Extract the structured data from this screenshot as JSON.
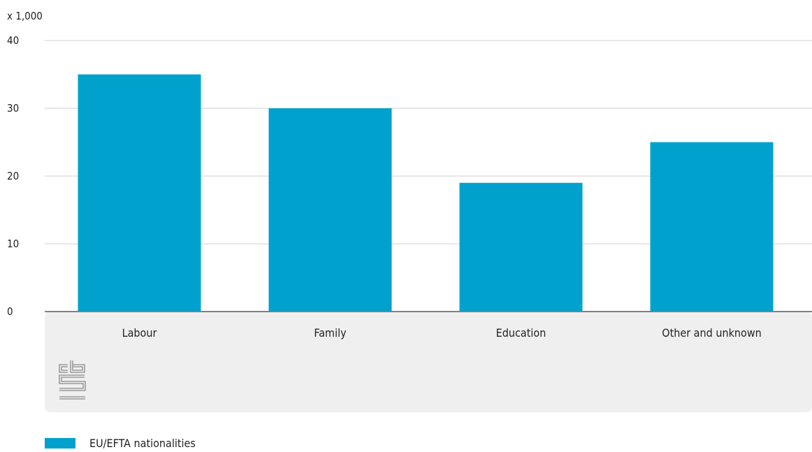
{
  "chart_data": {
    "type": "bar",
    "categories": [
      "Labour",
      "Family",
      "Education",
      "Other and unknown"
    ],
    "series": [
      {
        "name": "EU/EFTA nationalities",
        "values": [
          35,
          30,
          19,
          25
        ],
        "color": "#00a1cd"
      }
    ],
    "unit_label": "x 1,000",
    "ylim": [
      0,
      40
    ],
    "yticks": [
      0,
      10,
      20,
      30,
      40
    ],
    "grid": true,
    "legend_position": "bottom-left",
    "logo": "cbs"
  },
  "colors": {
    "bar": "#00a1cd",
    "axis_band": "#efefef",
    "gridline": "#cfcfcf",
    "baseline": "#808080",
    "logo": "#9a9a9a"
  }
}
